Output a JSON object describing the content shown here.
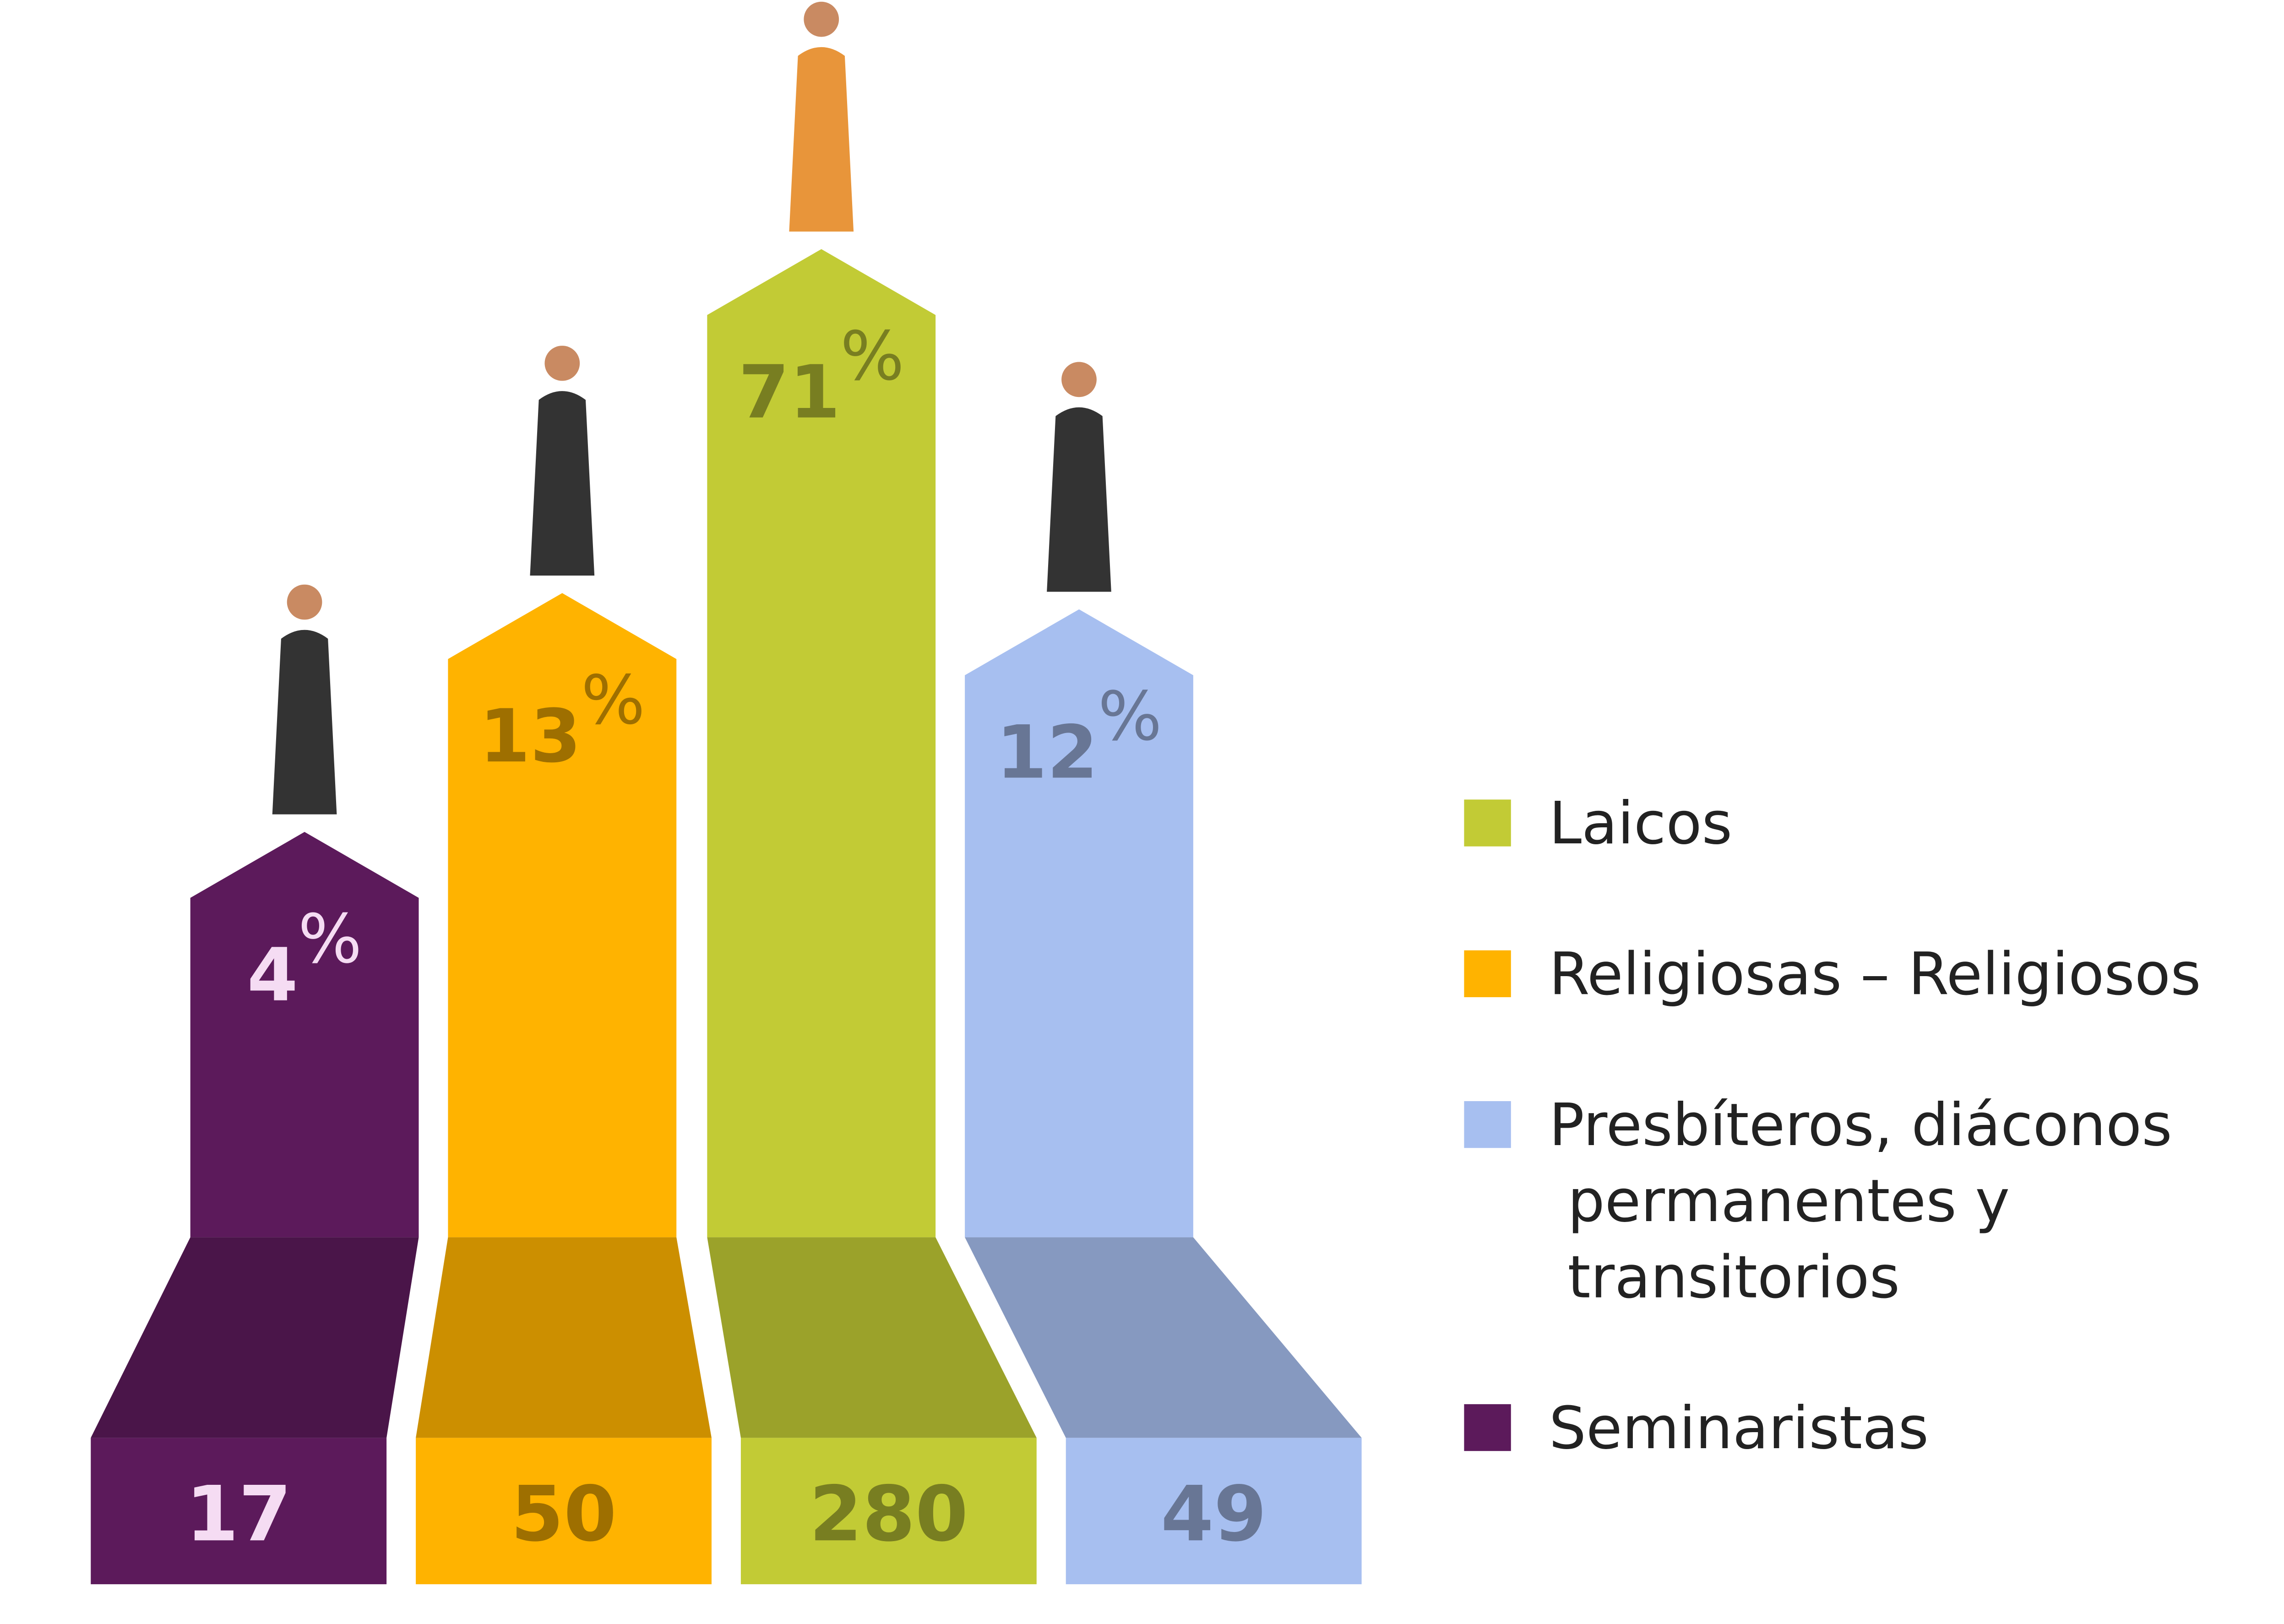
{
  "chart_data": {
    "type": "bar",
    "log_scale": true,
    "ylim": [
      1,
      71
    ],
    "series": [
      {
        "name": "Seminaristas",
        "color": "#5c1a5b",
        "values": [
          4
        ],
        "value_labels": [
          "4%"
        ],
        "count": 17
      },
      {
        "name": "Religiosas – Religiosos",
        "color": "#ffb300",
        "values": [
          13
        ],
        "value_labels": [
          "13%"
        ],
        "count": 50
      },
      {
        "name": "Laicos",
        "color": "#c2cb35",
        "values": [
          71
        ],
        "value_labels": [
          "71%"
        ],
        "count": 280
      },
      {
        "name": "Presbíteros, diáconos permanentes y transitorios",
        "color": "#a7bff0",
        "values": [
          12
        ],
        "value_labels": [
          "12%"
        ],
        "count": 49
      }
    ],
    "legend": {
      "position": "right",
      "order": [
        2,
        1,
        3,
        0
      ]
    }
  }
}
